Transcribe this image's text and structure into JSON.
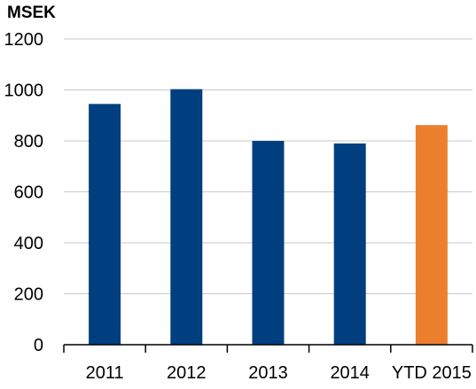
{
  "chart_data": {
    "type": "bar",
    "unit_label": "MSEK",
    "categories": [
      "2011",
      "2012",
      "2013",
      "2014",
      "YTD 2015"
    ],
    "values": [
      945,
      1003,
      800,
      790,
      862
    ],
    "bar_colors": [
      "#003f7f",
      "#003f7f",
      "#003f7f",
      "#003f7f",
      "#ec7f2d"
    ],
    "ylim": [
      0,
      1200
    ],
    "yticks": [
      0,
      200,
      400,
      600,
      800,
      1000,
      1200
    ],
    "grid": true,
    "gridline_color": "#c9c9c9",
    "legend": "none"
  }
}
